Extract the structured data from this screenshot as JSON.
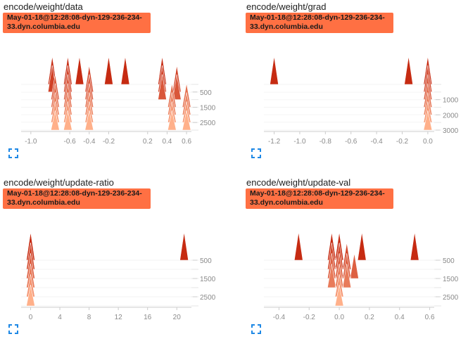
{
  "colors": {
    "accent": "#ff7043",
    "dark": "#c62b12",
    "light": "#ffb08a",
    "axis": "#cccccc",
    "tick_text": "#8a8a8a"
  },
  "cards": [
    {
      "title": "encode/weight/data",
      "run": "May-01-18@12:28:08-dyn-129-236-234-33.dyn.columbia.edu",
      "expand_icon": "fullscreen-icon"
    },
    {
      "title": "encode/weight/grad",
      "run": "May-01-18@12:28:08-dyn-129-236-234-33.dyn.columbia.edu",
      "expand_icon": "fullscreen-icon"
    },
    {
      "title": "encode/weight/update-ratio",
      "run": "May-01-18@12:28:08-dyn-129-236-234-33.dyn.columbia.edu",
      "expand_icon": "fullscreen-icon"
    },
    {
      "title": "encode/weight/update-val",
      "run": "May-01-18@12:28:08-dyn-129-236-234-33.dyn.columbia.edu",
      "expand_icon": "fullscreen-icon"
    }
  ],
  "chart_data": [
    {
      "type": "area",
      "title": "encode/weight/data",
      "x_ticks": [
        "-1.0",
        "-0.6",
        "-0.4",
        "-0.2",
        "0.2",
        "0.4",
        "0.6"
      ],
      "xlim": [
        -1.1,
        0.65
      ],
      "y_ticks": [
        "500",
        "1500",
        "2500"
      ],
      "steps": [
        0,
        500,
        1000,
        1500,
        2000,
        2500,
        3000
      ],
      "peaks": [
        [
          -0.78,
          -0.62,
          -0.5,
          -0.2,
          -0.03,
          0.35
        ],
        [
          -0.78,
          -0.62,
          -0.4,
          0.35,
          0.5
        ],
        [
          -0.75,
          -0.62,
          -0.4,
          0.35,
          0.5
        ],
        [
          -0.75,
          -0.62,
          -0.4,
          0.45,
          0.6
        ],
        [
          -0.75,
          -0.62,
          -0.4,
          0.45,
          0.6
        ],
        [
          -0.75,
          -0.62,
          -0.4,
          0.45,
          0.6
        ],
        [
          -0.75,
          -0.62,
          -0.4,
          0.45,
          0.6
        ]
      ]
    },
    {
      "type": "area",
      "title": "encode/weight/grad",
      "x_ticks": [
        "-1.2",
        "-1.0",
        "-0.8",
        "-0.6",
        "-0.4",
        "-0.2",
        "0.0"
      ],
      "xlim": [
        -1.28,
        0.05
      ],
      "y_ticks": [
        "1000",
        "2000",
        "3000"
      ],
      "steps": [
        0,
        500,
        1000,
        1500,
        2000,
        2500,
        3000
      ],
      "peaks": [
        [
          -1.2,
          -0.15,
          0.0
        ],
        [
          0.0
        ],
        [
          0.0
        ],
        [
          0.0
        ],
        [
          0.0
        ],
        [
          0.0
        ],
        [
          0.0
        ]
      ]
    },
    {
      "type": "area",
      "title": "encode/weight/update-ratio",
      "x_ticks": [
        "0",
        "4",
        "8",
        "12",
        "16",
        "20"
      ],
      "xlim": [
        -1.3,
        22
      ],
      "y_ticks": [
        "500",
        "1500",
        "2500"
      ],
      "steps": [
        500,
        1000,
        1500,
        2000,
        2500,
        3000
      ],
      "peaks": [
        [
          0,
          21
        ],
        [
          0
        ],
        [
          0
        ],
        [
          0
        ],
        [
          0
        ],
        [
          0
        ]
      ]
    },
    {
      "type": "area",
      "title": "encode/weight/update-val",
      "x_ticks": [
        "-0.4",
        "-0.2",
        "0.0",
        "0.2",
        "0.4",
        "0.6"
      ],
      "xlim": [
        -0.5,
        0.63
      ],
      "y_ticks": [
        "500",
        "1500",
        "2500"
      ],
      "steps": [
        500,
        1000,
        1500,
        2000,
        2500,
        3000
      ],
      "peaks": [
        [
          -0.27,
          -0.05,
          0.0,
          0.15,
          0.5
        ],
        [
          -0.05,
          0.0,
          0.05
        ],
        [
          -0.05,
          0.0,
          0.05,
          0.1
        ],
        [
          -0.05,
          0.0,
          0.05
        ],
        [
          0.0
        ],
        [
          0.0
        ]
      ]
    }
  ]
}
